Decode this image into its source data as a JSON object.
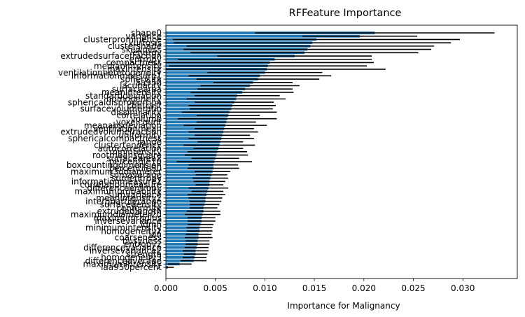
{
  "chart_data": {
    "type": "bar",
    "orientation": "horizontal",
    "title": "RFFeature Importance",
    "xlabel": "Importance for Malignancy",
    "ylabel": "",
    "xlim": [
      0,
      0.0355
    ],
    "xticks": [
      "0.000",
      "0.005",
      "0.010",
      "0.015",
      "0.020",
      "0.025",
      "0.030"
    ],
    "grid": false,
    "bar_color": "#1f77b4",
    "errorbar_color": "#000000",
    "categories": [
      "shape0",
      "variance",
      "clusterprominence",
      "kurtosis",
      "clustershade",
      "skewness",
      "energy",
      "extrudedsurfacefraction",
      "entropy",
      "compactness",
      "medianintensity",
      "maxintensity",
      "ventilationheterogeneity",
      "informationmeasure1",
      "sphericity",
      "laa950",
      "lacunarity",
      "surfacearea",
      "meanintensity",
      "standarddeviation",
      "homogeneity",
      "sphericaldisproportion",
      "contrast",
      "surfacevolumeratio",
      "dissimilarity",
      "correlation",
      "volume",
      "voxelcount",
      "meanabsdeviation",
      "ventilationmean",
      "extrudedvolumefraction",
      "uniformity",
      "sphericalcompactness",
      "range",
      "clustertendency",
      "autocorrelation",
      "minintensity",
      "rootmeansquare",
      "surfacearea2",
      "percentile10",
      "boxcountingdimension",
      "percentile90",
      "maximum3ddiameter",
      "sumaverage",
      "sumentropy",
      "informationmeasure2",
      "correlationmeasure",
      "differenceentropy",
      "maximumprobability",
      "sumvariance",
      "meanintensity2",
      "interquartilerange",
      "surfacedensity",
      "conformity",
      "extrudedlength",
      "maximumdiameter2d",
      "maximumradius",
      "inversevariance",
      "idmn",
      "minimumintensity",
      "homogeneity2",
      "idn",
      "coarseness",
      "busyness",
      "entropy2",
      "differencevariance",
      "inversevariance2",
      "strength",
      "homogeneity3",
      "differenceaverage",
      "maximumintensity",
      "laa950percent"
    ],
    "values": [
      0.0211,
      0.0196,
      0.0152,
      0.0148,
      0.0146,
      0.0143,
      0.014,
      0.013,
      0.011,
      0.0105,
      0.0103,
      0.0102,
      0.01,
      0.0095,
      0.0093,
      0.0088,
      0.0085,
      0.008,
      0.0077,
      0.0072,
      0.0071,
      0.0069,
      0.0067,
      0.0066,
      0.0064,
      0.0063,
      0.0062,
      0.0061,
      0.006,
      0.0059,
      0.0058,
      0.0057,
      0.0056,
      0.0055,
      0.0054,
      0.0053,
      0.0052,
      0.0051,
      0.005,
      0.0049,
      0.0048,
      0.0048,
      0.0047,
      0.0046,
      0.0045,
      0.0044,
      0.0044,
      0.0043,
      0.0042,
      0.0041,
      0.004,
      0.004,
      0.0039,
      0.0038,
      0.0038,
      0.0037,
      0.0036,
      0.0036,
      0.0035,
      0.0034,
      0.0034,
      0.0033,
      0.0033,
      0.0032,
      0.0032,
      0.0031,
      0.003,
      0.003,
      0.0029,
      0.0028,
      0.0014,
      0.0002
    ],
    "errors": [
      0.0121,
      0.0058,
      0.0145,
      0.014,
      0.0125,
      0.0125,
      0.0115,
      0.0078,
      0.0098,
      0.0105,
      0.01,
      0.012,
      0.0058,
      0.0072,
      0.0062,
      0.004,
      0.005,
      0.0048,
      0.0052,
      0.0043,
      0.005,
      0.004,
      0.0044,
      0.0042,
      0.0048,
      0.0032,
      0.005,
      0.003,
      0.0042,
      0.003,
      0.0035,
      0.0028,
      0.0033,
      0.0023,
      0.0036,
      0.0025,
      0.003,
      0.0032,
      0.0024,
      0.0038,
      0.0025,
      0.0026,
      0.0018,
      0.0016,
      0.0018,
      0.0016,
      0.0014,
      0.002,
      0.0016,
      0.0019,
      0.0017,
      0.0016,
      0.0015,
      0.0014,
      0.0017,
      0.0018,
      0.0014,
      0.0014,
      0.0013,
      0.0013,
      0.0013,
      0.0013,
      0.0014,
      0.0012,
      0.0012,
      0.0012,
      0.0013,
      0.0012,
      0.0012,
      0.0013,
      0.0012,
      0.0006
    ]
  }
}
